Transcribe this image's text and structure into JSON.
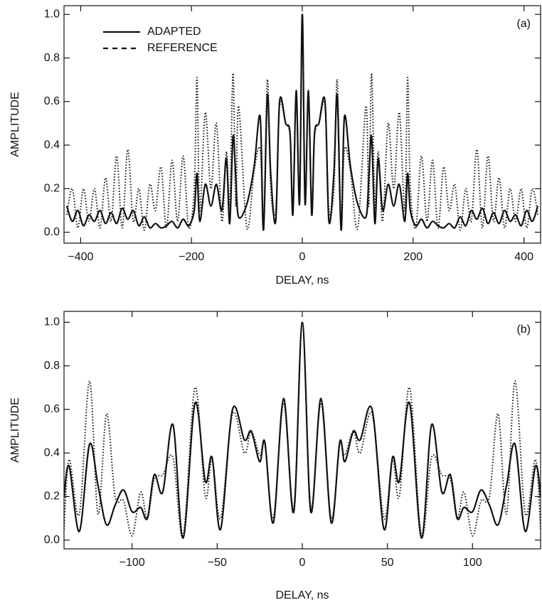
{
  "chart_data": [
    {
      "type": "line",
      "annotation": "(a)",
      "x_label": "DELAY, ns",
      "y_label": "AMPLITUDE",
      "legend": "upper left",
      "xlim": [
        -430,
        430
      ],
      "ylim": [
        -0.05,
        1.04
      ],
      "xticks": [
        {
          "value": -400,
          "label": "−400"
        },
        {
          "value": -200,
          "label": "−200"
        },
        0,
        200,
        400
      ],
      "yticks": [
        {
          "value": 0,
          "label": "0.0"
        },
        {
          "value": 0.2,
          "label": "0.2"
        },
        {
          "value": 0.4,
          "label": "0.4"
        },
        {
          "value": 0.6,
          "label": "0.6"
        },
        {
          "value": 0.8,
          "label": "0.8"
        },
        {
          "value": 1,
          "label": "1.0"
        }
      ],
      "x": [
        -425,
        -415,
        -405,
        -395,
        -385,
        -375,
        -365,
        -355,
        -345,
        -335,
        -325,
        -315,
        -305,
        -295,
        -285,
        -275,
        -265,
        -255,
        -245,
        -235,
        -225,
        -215,
        -205,
        -195,
        -190,
        -185,
        -175,
        -165,
        -155,
        -145,
        -137,
        -131,
        -125,
        -120,
        -115,
        -100,
        -87,
        -76,
        -70,
        -63,
        -57,
        -48,
        -41,
        -30,
        -22,
        -17,
        -11,
        -5,
        0,
        5,
        11,
        17,
        22,
        30,
        41,
        48,
        57,
        63,
        70,
        76,
        87,
        100,
        115,
        120,
        125,
        131,
        137,
        145,
        155,
        165,
        175,
        185,
        190,
        195,
        205,
        215,
        225,
        235,
        245,
        255,
        265,
        275,
        285,
        295,
        305,
        315,
        325,
        335,
        345,
        355,
        365,
        375,
        385,
        395,
        405,
        415,
        425
      ],
      "series": [
        {
          "name": "ADAPTED",
          "color": "#111111",
          "style": "solid",
          "values": [
            0.12,
            0.05,
            0.1,
            0.03,
            0.08,
            0.05,
            0.1,
            0.04,
            0.09,
            0.04,
            0.11,
            0.06,
            0.1,
            0.03,
            0.07,
            0.02,
            0.04,
            0.02,
            0.03,
            0.05,
            0.02,
            0.06,
            0.03,
            0.1,
            0.27,
            0.05,
            0.22,
            0.12,
            0.22,
            0.1,
            0.34,
            0.04,
            0.44,
            0.25,
            0.07,
            0.13,
            0.3,
            0.53,
            0.01,
            0.63,
            0.27,
            0.05,
            0.6,
            0.5,
            0.45,
            0.08,
            0.65,
            0.13,
            1,
            0.13,
            0.65,
            0.08,
            0.45,
            0.5,
            0.6,
            0.05,
            0.27,
            0.63,
            0.01,
            0.53,
            0.3,
            0.13,
            0.07,
            0.25,
            0.44,
            0.04,
            0.34,
            0.1,
            0.22,
            0.12,
            0.22,
            0.05,
            0.27,
            0.1,
            0.03,
            0.06,
            0.02,
            0.05,
            0.03,
            0.02,
            0.04,
            0.02,
            0.07,
            0.03,
            0.1,
            0.06,
            0.11,
            0.04,
            0.09,
            0.04,
            0.1,
            0.05,
            0.08,
            0.03,
            0.1,
            0.05,
            0.12
          ]
        },
        {
          "name": "REFERENCE",
          "color": "#111111",
          "style": "dotted",
          "values": [
            0.08,
            0.2,
            0.02,
            0.2,
            0.05,
            0.2,
            0.02,
            0.25,
            0.05,
            0.35,
            0.02,
            0.38,
            0.05,
            0.2,
            0.01,
            0.22,
            0.1,
            0.3,
            0.02,
            0.33,
            0.05,
            0.35,
            0.02,
            0.2,
            0.71,
            0.1,
            0.55,
            0.2,
            0.5,
            0.05,
            0.37,
            0.12,
            0.73,
            0.12,
            0.58,
            0.02,
            0.28,
            0.38,
            0.02,
            0.7,
            0.2,
            0.1,
            0.58,
            0.5,
            0.44,
            0.1,
            0.63,
            0.15,
            1,
            0.15,
            0.63,
            0.1,
            0.44,
            0.5,
            0.58,
            0.1,
            0.2,
            0.7,
            0.02,
            0.38,
            0.28,
            0.02,
            0.58,
            0.12,
            0.73,
            0.12,
            0.37,
            0.05,
            0.5,
            0.2,
            0.55,
            0.1,
            0.71,
            0.2,
            0.02,
            0.35,
            0.05,
            0.33,
            0.02,
            0.3,
            0.1,
            0.22,
            0.01,
            0.2,
            0.05,
            0.38,
            0.02,
            0.35,
            0.05,
            0.25,
            0.02,
            0.2,
            0.05,
            0.2,
            0.02,
            0.2,
            0.08
          ]
        }
      ]
    },
    {
      "type": "line",
      "annotation": "(b)",
      "x_label": "DELAY, ns",
      "y_label": "AMPLITUDE",
      "xlim": [
        -140,
        140
      ],
      "ylim": [
        -0.04,
        1.05
      ],
      "xticks": [
        {
          "value": -100,
          "label": "−100"
        },
        {
          "value": -50,
          "label": "−50"
        },
        0,
        50,
        100
      ],
      "yticks": [
        {
          "value": 0,
          "label": "0.0"
        },
        {
          "value": 0.2,
          "label": "0.2"
        },
        {
          "value": 0.4,
          "label": "0.4"
        },
        {
          "value": 0.6,
          "label": "0.6"
        },
        {
          "value": 0.8,
          "label": "0.8"
        },
        {
          "value": 1,
          "label": "1.0"
        }
      ],
      "x": [
        -140,
        -137,
        -131,
        -125,
        -120,
        -115,
        -110,
        -105,
        -100,
        -95,
        -91,
        -87,
        -82,
        -76,
        -70,
        -63,
        -57,
        -53,
        -48,
        -41,
        -34,
        -30,
        -25,
        -22,
        -17,
        -11,
        -5,
        0,
        5,
        11,
        17,
        22,
        25,
        30,
        34,
        41,
        48,
        53,
        57,
        63,
        70,
        76,
        82,
        87,
        91,
        95,
        100,
        105,
        110,
        115,
        120,
        125,
        131,
        137,
        140
      ],
      "series": [
        {
          "color": "#111111",
          "style": "solid",
          "values": [
            0.2,
            0.34,
            0.04,
            0.44,
            0.25,
            0.07,
            0.16,
            0.23,
            0.13,
            0.15,
            0.1,
            0.3,
            0.22,
            0.53,
            0.01,
            0.63,
            0.27,
            0.38,
            0.05,
            0.6,
            0.46,
            0.5,
            0.36,
            0.45,
            0.08,
            0.65,
            0.13,
            1,
            0.13,
            0.65,
            0.08,
            0.45,
            0.36,
            0.5,
            0.46,
            0.6,
            0.05,
            0.38,
            0.27,
            0.63,
            0.01,
            0.53,
            0.22,
            0.3,
            0.1,
            0.15,
            0.13,
            0.23,
            0.16,
            0.07,
            0.25,
            0.44,
            0.04,
            0.34,
            0.2
          ]
        },
        {
          "color": "#111111",
          "style": "dotted",
          "values": [
            0.05,
            0.37,
            0.12,
            0.73,
            0.12,
            0.58,
            0.2,
            0.18,
            0.02,
            0.22,
            0.1,
            0.28,
            0.3,
            0.38,
            0.02,
            0.7,
            0.2,
            0.37,
            0.1,
            0.58,
            0.4,
            0.5,
            0.39,
            0.44,
            0.1,
            0.63,
            0.15,
            1,
            0.15,
            0.63,
            0.1,
            0.44,
            0.39,
            0.5,
            0.4,
            0.58,
            0.1,
            0.37,
            0.2,
            0.7,
            0.02,
            0.38,
            0.3,
            0.28,
            0.1,
            0.22,
            0.02,
            0.18,
            0.2,
            0.58,
            0.12,
            0.73,
            0.12,
            0.37,
            0.05
          ]
        }
      ]
    }
  ]
}
